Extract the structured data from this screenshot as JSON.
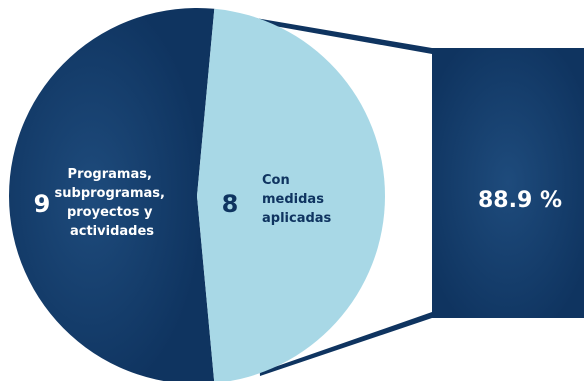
{
  "colors": {
    "primary_dark": "#0f3460",
    "light_slice": "#a8d8e6",
    "background": "#ffffff"
  },
  "chart_data": {
    "type": "pie",
    "slices": [
      {
        "label": "Programas, subprogramas, proyectos y actividades",
        "value": 9,
        "value_text": "9",
        "label_lines": [
          "Programas,",
          "subprogramas,",
          "proyectos y",
          "actividades"
        ],
        "color": "#0f3460"
      },
      {
        "label": "Con medidas aplicadas",
        "value": 8,
        "value_text": "8",
        "label_lines": [
          "Con",
          "medidas",
          "aplicadas"
        ],
        "color": "#a8d8e6"
      }
    ],
    "highlight": {
      "value": "88.9 %"
    }
  }
}
